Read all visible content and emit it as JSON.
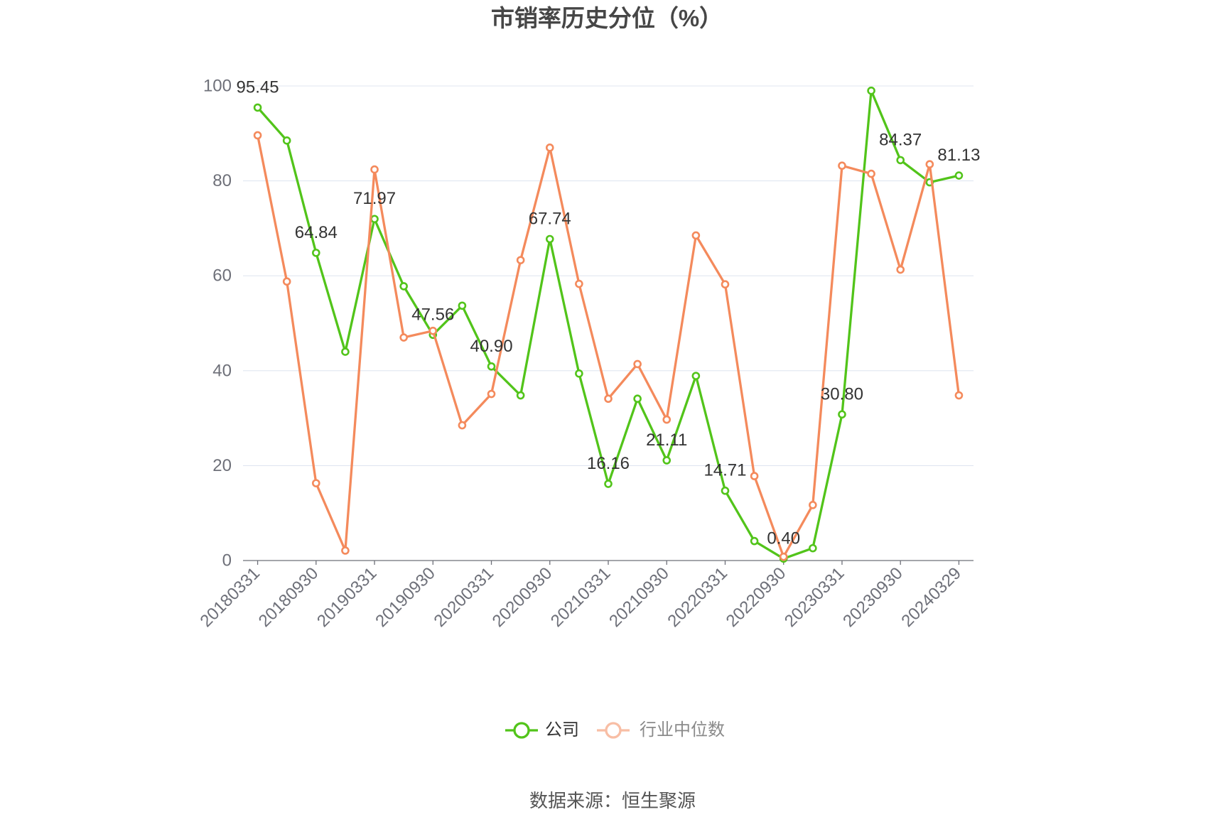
{
  "chart_data": {
    "type": "line",
    "title": "市销率历史分位（%）",
    "categories": [
      "20180331",
      "",
      "20180930",
      "",
      "20190331",
      "",
      "20190930",
      "",
      "20200331",
      "",
      "20200930",
      "",
      "20210331",
      "",
      "20210930",
      "",
      "20220331",
      "",
      "20220930",
      "",
      "20230331",
      "",
      "20230930",
      "",
      "20240329"
    ],
    "ylim": [
      0,
      100
    ],
    "yticks": [
      0,
      20,
      40,
      60,
      80,
      100
    ],
    "grid": true,
    "legend": "bottom",
    "series": [
      {
        "name": "公司",
        "color": "#52c41a",
        "values": [
          95.45,
          88.5,
          64.84,
          44.0,
          71.97,
          57.8,
          47.56,
          53.7,
          40.9,
          34.8,
          67.74,
          39.4,
          16.16,
          34.1,
          21.11,
          38.9,
          14.71,
          4.1,
          0.4,
          2.6,
          30.8,
          99.0,
          84.37,
          79.7,
          81.13
        ],
        "data_labels": [
          "95.45",
          "",
          "64.84",
          "",
          "71.97",
          "",
          "47.56",
          "",
          "40.90",
          "",
          "67.74",
          "",
          "16.16",
          "",
          "21.11",
          "",
          "14.71",
          "",
          "0.40",
          "",
          "30.80",
          "",
          "84.37",
          "",
          "81.13"
        ]
      },
      {
        "name": "行业中位数",
        "color": "#f48a5c",
        "values": [
          89.6,
          58.8,
          16.3,
          2.1,
          82.4,
          47.0,
          48.4,
          28.5,
          35.1,
          63.3,
          87.0,
          58.3,
          34.1,
          41.4,
          29.7,
          68.5,
          58.2,
          17.8,
          0.8,
          11.7,
          83.2,
          81.5,
          61.3,
          83.5,
          34.8
        ]
      }
    ]
  },
  "source": "数据来源：恒生聚源"
}
